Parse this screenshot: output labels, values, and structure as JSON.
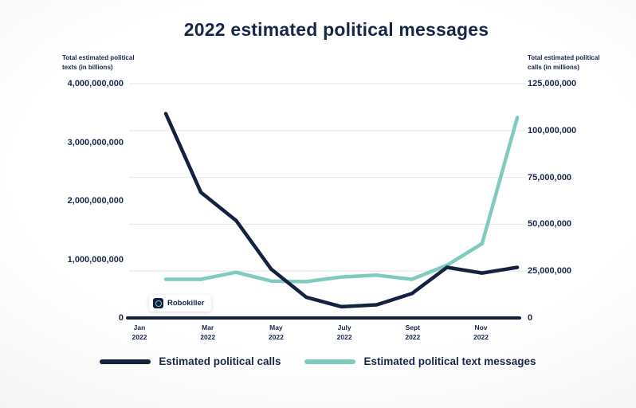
{
  "title": "2022 estimated political messages",
  "colors": {
    "navy": "#142240",
    "teal": "#7fccbe",
    "grid": "#e9e9e9",
    "badge_bg": "#ffffff"
  },
  "left_axis": {
    "header_line1": "Total estimated political",
    "header_line2": "texts (in billions)",
    "ticks": [
      "4,000,000,000",
      "3,000,000,000",
      "2,000,000,000",
      "1,000,000,000",
      "0"
    ]
  },
  "right_axis": {
    "header_line1": "Total estimated political",
    "header_line2": "calls (in millions)",
    "ticks": [
      "125,000,000",
      "100,000,000",
      "75,000,000",
      "50,000,000",
      "25,000,000",
      "0"
    ]
  },
  "x_axis": {
    "ticks": [
      {
        "month": "Jan",
        "year": "2022"
      },
      {
        "month": "Mar",
        "year": "2022"
      },
      {
        "month": "May",
        "year": "2022"
      },
      {
        "month": "July",
        "year": "2022"
      },
      {
        "month": "Sept",
        "year": "2022"
      },
      {
        "month": "Nov",
        "year": "2022"
      }
    ]
  },
  "badge": {
    "label": "Robokiller"
  },
  "legend": [
    {
      "label": "Estimated political calls",
      "color": "#142240"
    },
    {
      "label": "Estimated political text messages",
      "color": "#7fccbe"
    }
  ],
  "chart_data": {
    "type": "line",
    "title": "2022 estimated political messages",
    "x": [
      "Feb 2022",
      "Mar 2022",
      "Apr 2022",
      "May 2022",
      "Jun 2022",
      "Jul 2022",
      "Aug 2022",
      "Sep 2022",
      "Oct 2022",
      "Nov 2022",
      "Dec 2022"
    ],
    "x_tick_labels_shown": [
      "Jan 2022",
      "Mar 2022",
      "May 2022",
      "July 2022",
      "Sept 2022",
      "Nov 2022"
    ],
    "series": [
      {
        "name": "Estimated political calls",
        "axis": "right",
        "units": "millions of calls",
        "color": "#142240",
        "values": [
          109,
          67,
          52,
          26,
          11,
          6,
          7,
          13,
          27,
          24,
          27
        ]
      },
      {
        "name": "Estimated political text messages",
        "axis": "left",
        "units": "billions of texts",
        "color": "#7fccbe",
        "values": [
          0.66,
          0.66,
          0.78,
          0.63,
          0.62,
          0.7,
          0.73,
          0.66,
          0.9,
          1.27,
          3.42
        ]
      }
    ],
    "left_axis": {
      "label": "Total estimated political texts (in billions)",
      "display_range": [
        0,
        4
      ],
      "tick_step": 1
    },
    "right_axis": {
      "label": "Total estimated political calls (in millions)",
      "display_range": [
        0,
        125
      ],
      "tick_step": 25
    },
    "grid": "horizontal-light",
    "legend_position": "bottom",
    "source": "Robokiller"
  }
}
